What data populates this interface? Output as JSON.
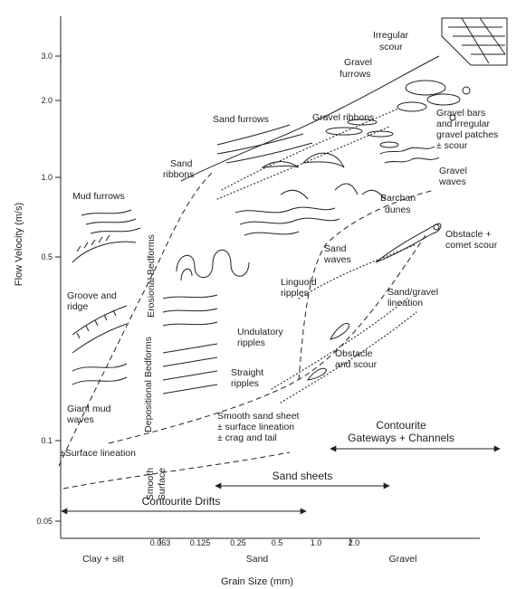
{
  "axes": {
    "y_title": "Flow Velocity (m/s)",
    "y_ticks": [
      "3.0",
      "2.0",
      "1.0",
      "0.5",
      "0.1",
      "0.05"
    ],
    "x_title": "Grain Size (mm)",
    "x_ticks": [
      "0.063",
      "0.125",
      "0.25",
      "0.5",
      "1.0",
      "2.0"
    ],
    "x_classes": [
      "Clay + silt",
      "Sand",
      "Gravel"
    ]
  },
  "zones": {
    "erosional": "Erosional Bedforms",
    "depositional": "Depositional Bedforms",
    "smooth_1": "Smooth",
    "smooth_2": "Surface"
  },
  "bedforms": {
    "irregular_scour_1": "Irregular",
    "irregular_scour_2": "scour",
    "gravel_furrows_1": "Gravel",
    "gravel_furrows_2": "furrows",
    "sand_furrows": "Sand furrows",
    "gravel_ribbons": "Gravel ribbons",
    "gravel_bars_1": "Gravel bars",
    "gravel_bars_2": "and irregular",
    "gravel_bars_3": "gravel patches",
    "gravel_bars_4": "± scour",
    "gravel_waves_1": "Gravel",
    "gravel_waves_2": "waves",
    "barchan_1": "Barchan",
    "barchan_2": "dunes",
    "sand_ribbons_1": "Sand",
    "sand_ribbons_2": "ribbons",
    "mud_furrows": "Mud furrows",
    "obstacle_comet_1": "Obstacle +",
    "obstacle_comet_2": "comet scour",
    "sand_waves_1": "Sand",
    "sand_waves_2": "waves",
    "linguoid_1": "Linguoid",
    "linguoid_2": "ripples",
    "sand_gravel_lin_1": "Sand/gravel",
    "sand_gravel_lin_2": "lineation",
    "groove_1": "Groove and",
    "groove_2": "ridge",
    "undulatory_1": "Undulatory",
    "undulatory_2": "ripples",
    "obstacle_scour_1": "Obstacle",
    "obstacle_scour_2": "and scour",
    "straight_1": "Straight",
    "straight_2": "ripples",
    "giant_mud_1": "Giant mud",
    "giant_mud_2": "waves",
    "smooth_sheet_1": "Smooth sand sheet",
    "smooth_sheet_2": "± surface lineation",
    "smooth_sheet_3": "± crag and tail",
    "surface_lineation": "±Surface lineation"
  },
  "deposits": {
    "gateways_1": "Contourite",
    "gateways_2": "Gateways + Channels",
    "sand_sheets": "Sand sheets",
    "drifts": "Contourite Drifts"
  }
}
